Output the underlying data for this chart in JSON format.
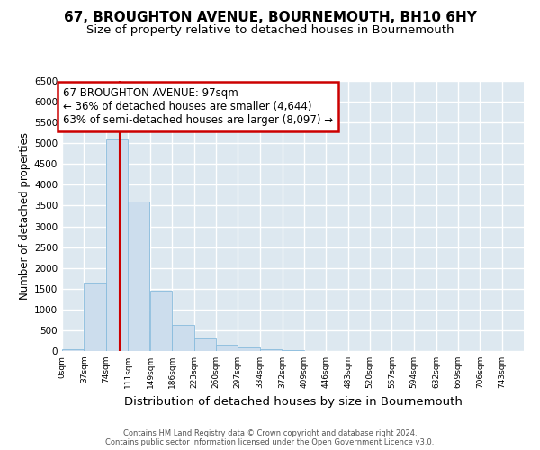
{
  "title1": "67, BROUGHTON AVENUE, BOURNEMOUTH, BH10 6HY",
  "title2": "Size of property relative to detached houses in Bournemouth",
  "xlabel": "Distribution of detached houses by size in Bournemouth",
  "ylabel": "Number of detached properties",
  "footnote1": "Contains HM Land Registry data © Crown copyright and database right 2024.",
  "footnote2": "Contains public sector information licensed under the Open Government Licence v3.0.",
  "bin_labels": [
    "0sqm",
    "37sqm",
    "74sqm",
    "111sqm",
    "149sqm",
    "186sqm",
    "223sqm",
    "260sqm",
    "297sqm",
    "334sqm",
    "372sqm",
    "409sqm",
    "446sqm",
    "483sqm",
    "520sqm",
    "557sqm",
    "594sqm",
    "632sqm",
    "669sqm",
    "706sqm",
    "743sqm"
  ],
  "bin_edges": [
    0,
    37,
    74,
    111,
    149,
    186,
    223,
    260,
    297,
    334,
    372,
    409,
    446,
    483,
    520,
    557,
    594,
    632,
    669,
    706,
    743,
    780
  ],
  "bar_heights": [
    50,
    1650,
    5100,
    3600,
    1450,
    620,
    300,
    150,
    80,
    50,
    15,
    5,
    2,
    0,
    0,
    0,
    0,
    0,
    0,
    0,
    0
  ],
  "bar_color": "#ccdded",
  "bar_edge_color": "#88bbdd",
  "property_size": 97,
  "vline_color": "#cc0000",
  "annotation_text": "67 BROUGHTON AVENUE: 97sqm\n← 36% of detached houses are smaller (4,644)\n63% of semi-detached houses are larger (8,097) →",
  "annotation_box_color": "#ffffff",
  "annotation_box_edge": "#cc0000",
  "ylim": [
    0,
    6500
  ],
  "yticks": [
    0,
    500,
    1000,
    1500,
    2000,
    2500,
    3000,
    3500,
    4000,
    4500,
    5000,
    5500,
    6000,
    6500
  ],
  "fig_bg_color": "#ffffff",
  "axes_bg_color": "#dde8f0",
  "grid_color": "#ffffff",
  "title1_fontsize": 11,
  "title2_fontsize": 9.5,
  "xlabel_fontsize": 9.5,
  "ylabel_fontsize": 8.5,
  "ann_fontsize": 8.5
}
